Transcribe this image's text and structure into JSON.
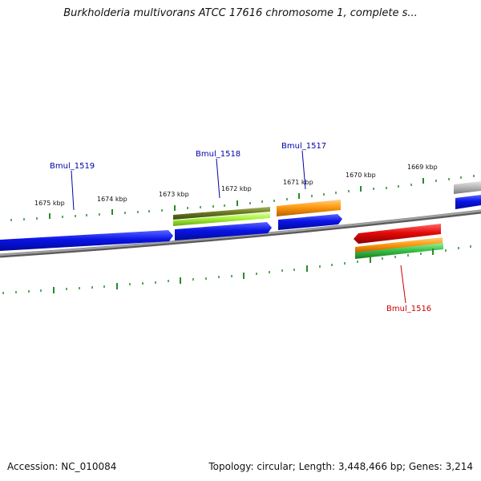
{
  "title": "Burkholderia multivorans ATCC 17616 chromosome 1, complete s...",
  "footer": {
    "accession": "Accession: NC_010084",
    "summary": "Topology: circular; Length: 3,448,466 bp; Genes: 3,214"
  },
  "scale_labels": [
    "1675 kbp",
    "1674 kbp",
    "1673 kbp",
    "1672 kbp",
    "1671 kbp",
    "1670 kbp",
    "1669 kbp"
  ],
  "gene_labels": [
    {
      "name": "Bmul_1519",
      "color": "#0000aa"
    },
    {
      "name": "Bmul_1518",
      "color": "#0000aa"
    },
    {
      "name": "Bmul_1517",
      "color": "#0000aa"
    },
    {
      "name": "Bmul_1516",
      "color": "#cc0000"
    }
  ],
  "colors": {
    "backbone": "#8c8c8c",
    "forward_cds": "#0a14e6",
    "reverse_cds": "#e60a0a",
    "olive_feature": "#6b7a22",
    "lime_feature": "#a6f23a",
    "orange_feature": "#ff9a10",
    "green_feature": "#3cc24a",
    "grey_feature": "#b4b4b4",
    "ticks": "#2a8a2a"
  }
}
